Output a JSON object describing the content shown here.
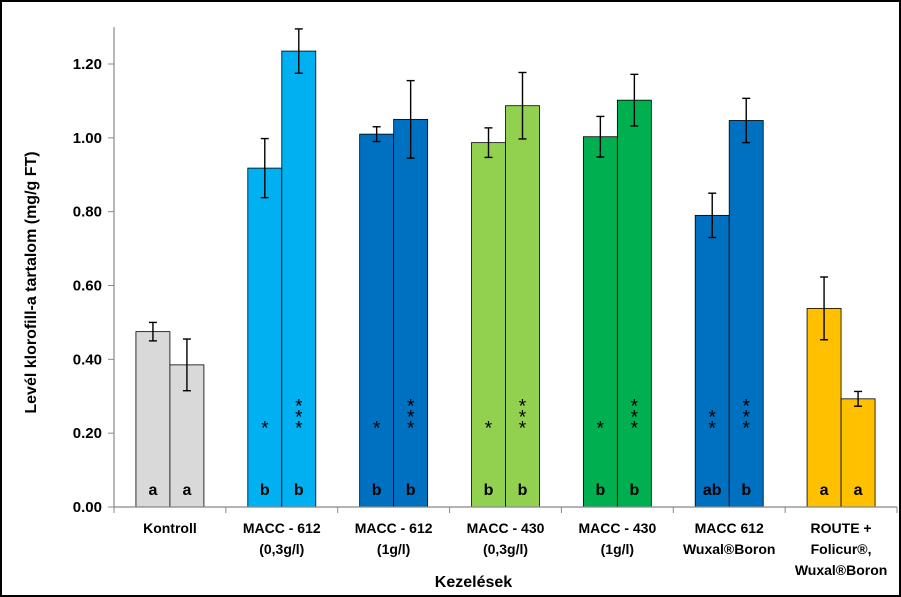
{
  "chart_data": {
    "type": "bar",
    "xlabel": "Kezelések",
    "ylabel": "Levél klorofill-a tartalom (mg/g FT)",
    "ylim": [
      0,
      1.3
    ],
    "yticks": [
      "0.00",
      "0.20",
      "0.40",
      "0.60",
      "0.80",
      "1.00",
      "1.20"
    ],
    "grid": false,
    "categories": [
      {
        "lines": [
          "Kontroll"
        ]
      },
      {
        "lines": [
          "MACC - 612",
          "(0,3g/l)"
        ]
      },
      {
        "lines": [
          "MACC - 612",
          "(1g/l)"
        ]
      },
      {
        "lines": [
          "MACC - 430",
          "(0,3g/l)"
        ]
      },
      {
        "lines": [
          "MACC - 430",
          "(1g/l)"
        ]
      },
      {
        "lines": [
          "MACC 612",
          "Wuxal®Boron"
        ]
      },
      {
        "lines": [
          "ROUTE +",
          "Folicur®,",
          "Wuxal®Boron"
        ]
      }
    ],
    "groups": [
      {
        "color": "#d9d9d9",
        "bars": [
          {
            "value": 0.475,
            "err": 0.025,
            "letter": "a",
            "stars": ""
          },
          {
            "value": 0.385,
            "err": 0.07,
            "letter": "a",
            "stars": ""
          }
        ]
      },
      {
        "color": "#00b0f0",
        "bars": [
          {
            "value": 0.918,
            "err": 0.08,
            "letter": "b",
            "stars": "*"
          },
          {
            "value": 1.235,
            "err": 0.06,
            "letter": "b",
            "stars": "***"
          }
        ]
      },
      {
        "color": "#0070c0",
        "bars": [
          {
            "value": 1.01,
            "err": 0.02,
            "letter": "b",
            "stars": "*"
          },
          {
            "value": 1.05,
            "err": 0.105,
            "letter": "b",
            "stars": "***"
          }
        ]
      },
      {
        "color": "#92d050",
        "bars": [
          {
            "value": 0.987,
            "err": 0.04,
            "letter": "b",
            "stars": "*"
          },
          {
            "value": 1.087,
            "err": 0.09,
            "letter": "b",
            "stars": "***"
          }
        ]
      },
      {
        "color": "#00b050",
        "bars": [
          {
            "value": 1.003,
            "err": 0.055,
            "letter": "b",
            "stars": "*"
          },
          {
            "value": 1.102,
            "err": 0.07,
            "letter": "b",
            "stars": "***"
          }
        ]
      },
      {
        "color": "#0070c0",
        "bars": [
          {
            "value": 0.79,
            "err": 0.06,
            "letter": "ab",
            "stars": "**"
          },
          {
            "value": 1.047,
            "err": 0.06,
            "letter": "b",
            "stars": "***"
          }
        ]
      },
      {
        "color": "#ffc000",
        "bars": [
          {
            "value": 0.538,
            "err": 0.085,
            "letter": "a",
            "stars": ""
          },
          {
            "value": 0.293,
            "err": 0.02,
            "letter": "a",
            "stars": ""
          }
        ]
      }
    ]
  }
}
